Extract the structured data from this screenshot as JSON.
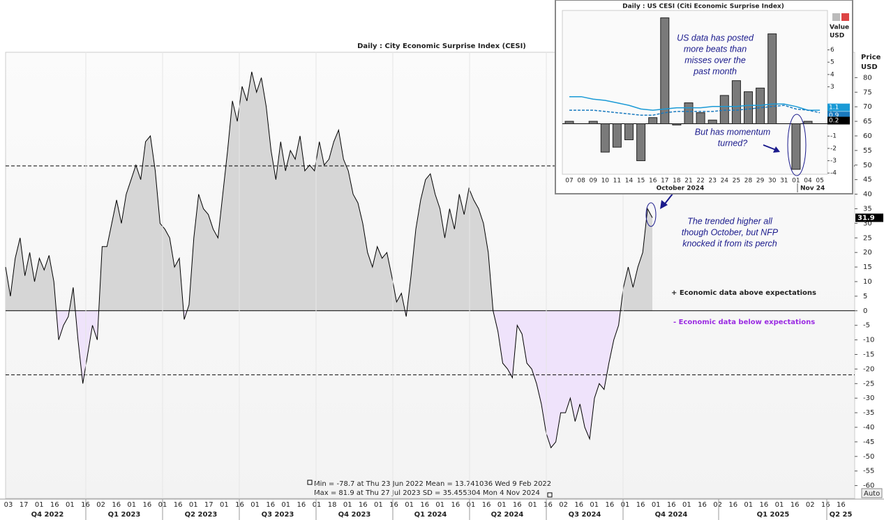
{
  "chart_data": [
    {
      "type": "line",
      "title": "Daily : City Economic Surprise Index (CESI)",
      "y_axis_label": [
        "Price",
        "USD"
      ],
      "color": "#000000",
      "positive_fill": "#d6d6d6",
      "negative_fill": "#efe3fb",
      "values": [
        15,
        5,
        18,
        25,
        12,
        20,
        10,
        18,
        14,
        19,
        10,
        -10,
        -5,
        -2,
        8,
        -10,
        -25,
        -15,
        -5,
        -10,
        22,
        22,
        30,
        38,
        30,
        40,
        45,
        50,
        45,
        58,
        60,
        48,
        30,
        28,
        25,
        15,
        18,
        -3,
        2,
        25,
        40,
        35,
        33,
        28,
        25,
        40,
        55,
        72,
        65,
        77,
        72,
        82,
        75,
        80,
        70,
        55,
        45,
        58,
        48,
        55,
        52,
        60,
        48,
        50,
        48,
        58,
        50,
        52,
        58,
        62,
        52,
        48,
        40,
        37,
        30,
        20,
        15,
        22,
        18,
        20,
        12,
        3,
        6,
        -2,
        12,
        28,
        38,
        45,
        47,
        40,
        35,
        25,
        35,
        28,
        40,
        33,
        42,
        38,
        35,
        30,
        20,
        0,
        -7,
        -18,
        -20,
        -23,
        -5,
        -8,
        -18,
        -20,
        -25,
        -32,
        -42,
        -47,
        -45,
        -35,
        -35,
        -30,
        -38,
        -32,
        -40,
        -44,
        -30,
        -25,
        -27,
        -18,
        -10,
        -5,
        8,
        15,
        8,
        15,
        20,
        35,
        31.9
      ],
      "ylim": [
        -64.4,
        88.7
      ],
      "yticks": [
        -60,
        -55,
        -50,
        -45,
        -40,
        -35,
        -30,
        -25,
        -20,
        -15,
        -10,
        -5,
        0,
        5,
        10,
        15,
        20,
        25,
        30,
        35,
        40,
        45,
        50,
        55,
        60,
        65,
        70,
        75,
        80
      ],
      "reference_lines": [
        49.7,
        -22
      ],
      "x_day_labels": [
        "03",
        "17",
        "01",
        "16",
        "01",
        "16",
        "02",
        "16",
        "01",
        "16",
        "01",
        "16",
        "01",
        "17",
        "01",
        "16",
        "01",
        "16",
        "01",
        "16",
        "01",
        "18",
        "01",
        "16",
        "01",
        "16",
        "01",
        "16",
        "01",
        "16",
        "01",
        "16",
        "01",
        "16",
        "01",
        "16",
        "02",
        "16",
        "01",
        "16",
        "01",
        "16",
        "01",
        "16",
        "01",
        "16",
        "02",
        "16",
        "01",
        "16",
        "01",
        "16",
        "02",
        "16",
        "16"
      ],
      "quarters": [
        "Q4 2022",
        "Q1 2023",
        "Q2 2023",
        "Q3 2023",
        "Q4 2023",
        "Q1 2024",
        "Q2 2024",
        "Q3 2024",
        "Q4 2024",
        "Q1 2025",
        "Q2 25"
      ],
      "annotation": [
        "The trended higher all",
        "though October, but NFP",
        "knocked it from its perch"
      ],
      "above_label": "+ Economic data above expectations",
      "below_label": "- Economic data below expectations",
      "stats": [
        "Min  = -78.7 at Thu 23 Jun 2022 Mean = 13.741036 Wed 9 Feb 2022",
        "Max = 81.9  at Thu 27 Jul 2023  SD     = 35.455304 Mon 4 Nov 2024"
      ],
      "button": "Auto"
    },
    {
      "type": "bar",
      "title": "Daily : US CESI (Citi Economic Surprise Index)",
      "y_axis_label": [
        "Value",
        "USD"
      ],
      "color": "#7a7a7a",
      "categories": [
        "07",
        "08",
        "09",
        "10",
        "11",
        "14",
        "15",
        "16",
        "17",
        "18",
        "21",
        "22",
        "23",
        "24",
        "25",
        "28",
        "29",
        "30",
        "31",
        "01",
        "04",
        "05"
      ],
      "values": [
        0.2,
        null,
        0.2,
        -2.3,
        -1.9,
        -1.3,
        -3.0,
        0.5,
        8.6,
        -0.1,
        1.7,
        0.9,
        0.3,
        2.3,
        3.5,
        2.6,
        2.9,
        7.3,
        null,
        -3.7,
        0.2,
        null
      ],
      "lines": [
        {
          "color": "#1a9ad6",
          "dashed": false,
          "values": [
            2.2,
            2.2,
            2.0,
            1.9,
            1.7,
            1.5,
            1.2,
            1.1,
            1.2,
            1.3,
            1.3,
            1.3,
            1.4,
            1.4,
            1.4,
            1.5,
            1.5,
            1.6,
            1.6,
            1.4,
            1.1,
            1.1
          ]
        },
        {
          "color": "#1a7abf",
          "dashed": true,
          "values": [
            1.1,
            1.1,
            1.1,
            1.0,
            0.9,
            0.8,
            0.7,
            0.7,
            0.9,
            1.0,
            1.0,
            1.0,
            1.0,
            1.1,
            1.1,
            1.2,
            1.3,
            1.4,
            1.5,
            1.2,
            1.1,
            0.9
          ]
        }
      ],
      "ylim": [
        -4.1,
        9.2
      ],
      "yticks": [
        -4,
        -3,
        -2,
        -1,
        1,
        3,
        4,
        5,
        6
      ],
      "month_labels": [
        "October 2024",
        "Nov 24"
      ],
      "annotations": [
        [
          "US data has posted",
          "more beats than",
          "misses over the",
          "past month"
        ],
        [
          "But has momentum",
          "turned?"
        ]
      ]
    }
  ]
}
